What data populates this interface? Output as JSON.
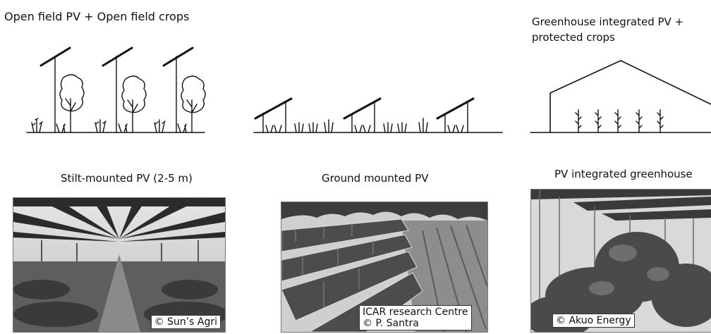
{
  "headings": {
    "left": "Open field PV + Open field crops",
    "right": "Greenhouse integrated PV + protected crops"
  },
  "captions": {
    "stilt": "Stilt-mounted PV (2-5 m)",
    "ground": "Ground mounted PV",
    "greenhouse": "PV integrated greenhouse"
  },
  "credits": {
    "stilt": "© Sun’s Agri",
    "ground_line1": "ICAR research Centre",
    "ground_line2": "© P. Santra",
    "greenhouse": "© Akuo Energy"
  }
}
